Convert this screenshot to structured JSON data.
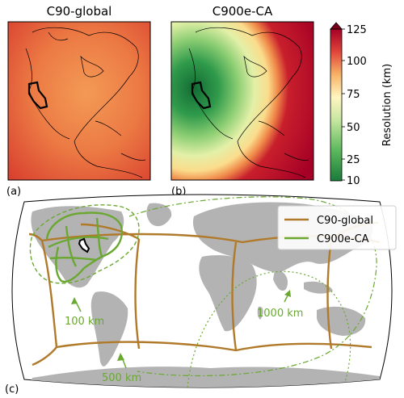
{
  "panel_a": {
    "title": "C90-global",
    "label": "(a)"
  },
  "panel_b": {
    "title": "C900e-CA",
    "label": "(b)"
  },
  "panel_c": {
    "label": "(c)"
  },
  "colorbar": {
    "label": "Resolution (km)",
    "ticks": [
      "125",
      "100",
      "75",
      "50",
      "25",
      "10"
    ],
    "colors": [
      "#1a7a3a",
      "#5cb85c",
      "#c6e6a0",
      "#fff6c0",
      "#f7b267",
      "#e0453a",
      "#a50026"
    ]
  },
  "legend": {
    "items": [
      {
        "label": "C90-global",
        "color": "#b07a2a"
      },
      {
        "label": "C900e-CA",
        "color": "#6aa832"
      }
    ]
  },
  "annotations": {
    "a100": "100 km",
    "a500": "500 km",
    "a1000": "1000 km"
  }
}
